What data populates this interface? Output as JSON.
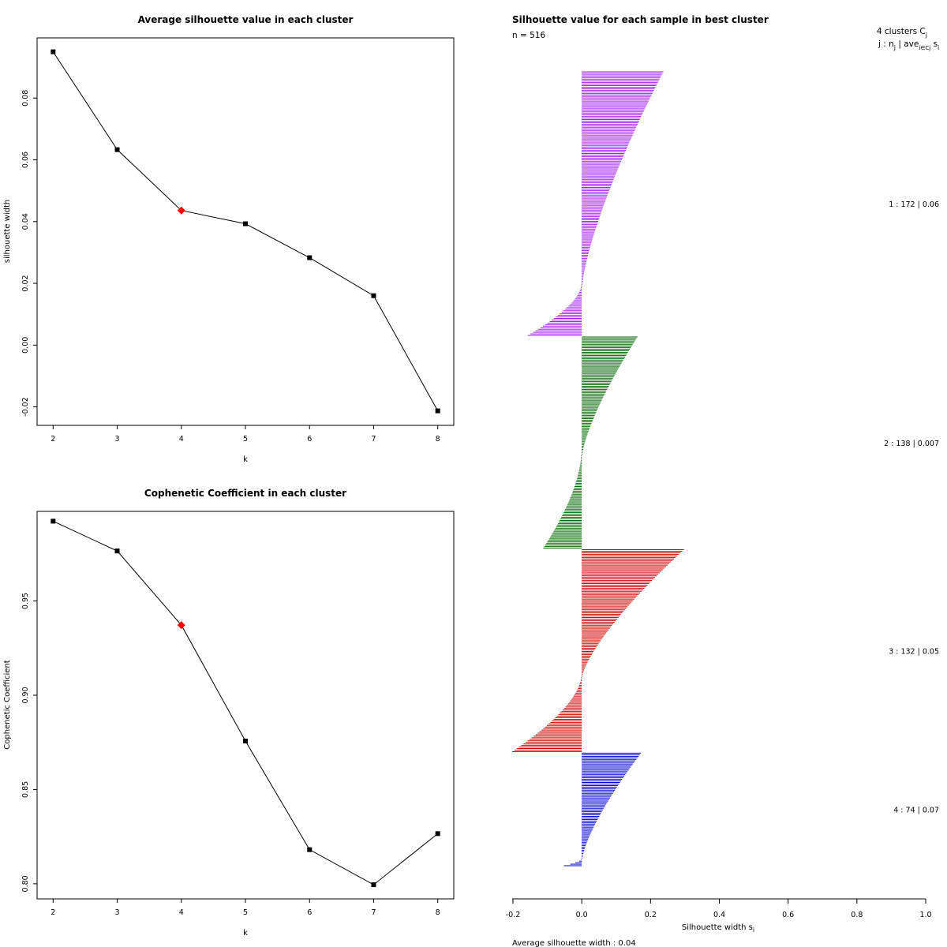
{
  "chart_data": [
    {
      "type": "line",
      "title": "Average silhouette value in each cluster",
      "xlabel": "k",
      "ylabel": "silhouette width",
      "x": [
        2,
        3,
        4,
        5,
        6,
        7,
        8
      ],
      "y": [
        0.095,
        0.0633,
        0.0436,
        0.0393,
        0.0283,
        0.016,
        -0.0213
      ],
      "highlight_x": 4,
      "highlight_color": "#ff0000",
      "xlim": [
        1.75,
        8.25
      ],
      "ylim": [
        -0.026,
        0.0995
      ],
      "xticks": [
        "2",
        "3",
        "4",
        "5",
        "6",
        "7",
        "8"
      ],
      "yticks": [
        0.08,
        0.06,
        0.04,
        0.02,
        0.0,
        -0.02
      ],
      "ytick_labels": [
        "0.08",
        "0.06",
        "0.04",
        "0.02",
        "0.00",
        "-0.02"
      ]
    },
    {
      "type": "line",
      "title": "Cophenetic Coefficient in each cluster",
      "xlabel": "k",
      "ylabel": "Cophenetic Coefficient",
      "x": [
        2,
        3,
        4,
        5,
        6,
        7,
        8
      ],
      "y": [
        0.9923,
        0.9765,
        0.9372,
        0.8757,
        0.8181,
        0.7995,
        0.8266
      ],
      "highlight_x": 4,
      "highlight_color": "#ff0000",
      "xlim": [
        1.75,
        8.25
      ],
      "ylim": [
        0.792,
        0.9975
      ],
      "xticks": [
        "2",
        "3",
        "4",
        "5",
        "6",
        "7",
        "8"
      ],
      "yticks": [
        0.8,
        0.85,
        0.9,
        0.95
      ],
      "ytick_labels": [
        "0.80",
        "0.85",
        "0.90",
        "0.95"
      ]
    },
    {
      "type": "bar",
      "orientation": "horizontal",
      "title": "Silhouette value for each sample in best cluster",
      "n_label": "n = 516",
      "header_line1": "4 clusters  C",
      "header_sub1": "j",
      "header_line2": "j :  n",
      "header_sub2": "j",
      "header_mid": " | ave",
      "header_sub3": "i∈Cj",
      "header_end": " s",
      "header_sub4": "i",
      "xlabel": "Silhouette width s",
      "xlabel_sub": "i",
      "footer": "Average silhouette width :  0.04",
      "xlim": [
        -0.2,
        1.0
      ],
      "xticks": [
        -0.2,
        0.0,
        0.2,
        0.4,
        0.6,
        0.8,
        1.0
      ],
      "xtick_labels": [
        "-0.2",
        "0.0",
        "0.2",
        "0.4",
        "0.6",
        "0.8",
        "1.0"
      ],
      "clusters": [
        {
          "id": 1,
          "n": 172,
          "ave": 0.06,
          "label": "1 :   172  |  0.06",
          "color": "#a020f0",
          "max": 0.235,
          "pos_frac": 0.81,
          "min": -0.155
        },
        {
          "id": 2,
          "n": 138,
          "ave": 0.007,
          "label": "2 :   138  |  0.007",
          "color": "#006400",
          "max": 0.16,
          "pos_frac": 0.56,
          "min": -0.11
        },
        {
          "id": 3,
          "n": 132,
          "ave": 0.05,
          "label": "3 :   132  |  0.05",
          "color": "#cd0000",
          "max": 0.295,
          "pos_frac": 0.63,
          "min": -0.2
        },
        {
          "id": 4,
          "n": 74,
          "ave": 0.07,
          "label": "4 :   74  |  0.07",
          "color": "#0000cd",
          "max": 0.17,
          "pos_frac": 0.93,
          "min": -0.05
        }
      ]
    }
  ]
}
